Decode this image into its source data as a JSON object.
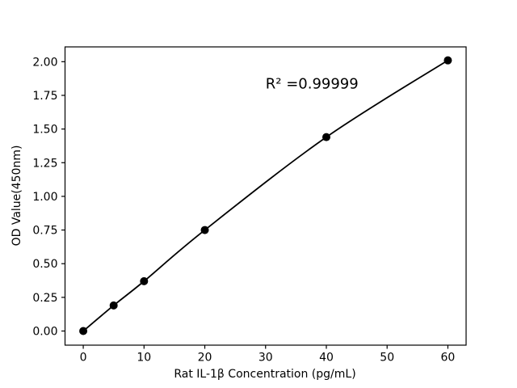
{
  "chart_data": {
    "type": "line",
    "title": "",
    "xlabel": "Rat IL-1β Concentration (pg/mL)",
    "ylabel": "OD Value(450nm)",
    "annotation": {
      "text": "R² =0.99999",
      "x": 30,
      "y": 1.8
    },
    "series": [
      {
        "name": "standard-curve",
        "x": [
          0,
          5,
          10,
          20,
          40,
          60
        ],
        "y": [
          0.0,
          0.19,
          0.37,
          0.75,
          1.44,
          2.01
        ],
        "color": "#000000",
        "marker": "circle"
      }
    ],
    "xticks": {
      "values": [
        0,
        10,
        20,
        30,
        40,
        50,
        60
      ],
      "labels": [
        "0",
        "10",
        "20",
        "30",
        "40",
        "50",
        "60"
      ]
    },
    "yticks": {
      "values": [
        0,
        0.25,
        0.5,
        0.75,
        1,
        1.25,
        1.5,
        1.75,
        2
      ],
      "labels": [
        "0.00",
        "0.25",
        "0.50",
        "0.75",
        "1.00",
        "1.25",
        "1.50",
        "1.75",
        "2.00"
      ]
    },
    "xlim": [
      -3,
      63
    ],
    "ylim": [
      -0.105,
      2.11
    ],
    "grid": false,
    "legend": null,
    "background": "#ffffff",
    "axis_color": "#000000"
  }
}
